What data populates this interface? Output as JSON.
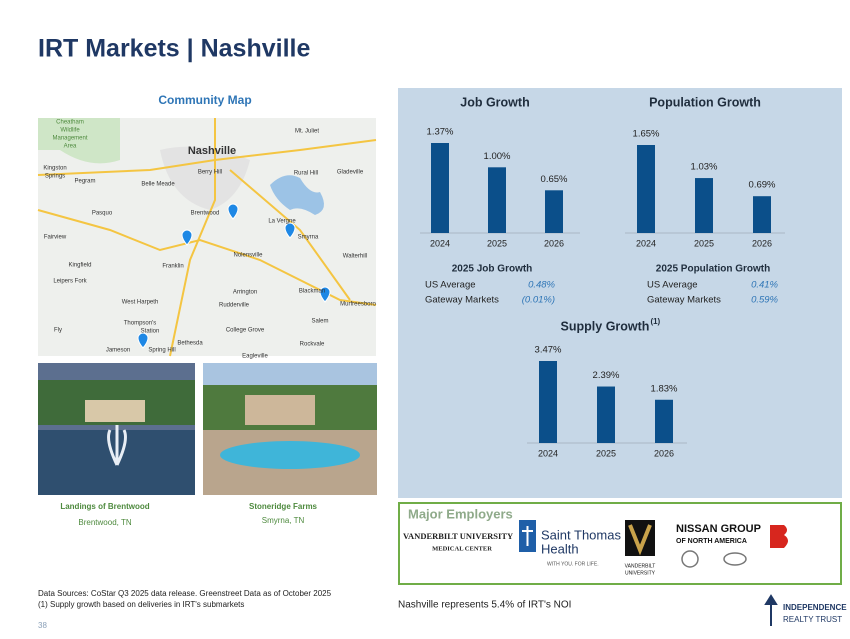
{
  "header": {
    "title": "IRT Markets | Nashville"
  },
  "map": {
    "title": "Community Map",
    "labels": [
      "Cheatham",
      "Wildlife",
      "Management",
      "Area",
      "Nashville",
      "Mt. Juliet",
      "Rural Hill",
      "Gladeville",
      "Kingston",
      "Springs",
      "Pegram",
      "Belle Meade",
      "Berry Hill",
      "Pasquo",
      "Brentwood",
      "La Vergne",
      "Smyrna",
      "Fairview",
      "Kingfield",
      "Franklin",
      "Nolensville",
      "Walterhill",
      "Leipers Fork",
      "Arrington",
      "Blackman",
      "Murfreesboro",
      "West Harpeth",
      "Rudderville",
      "Salem",
      "Thompson's",
      "Station",
      "College Grove",
      "Fly",
      "Bethesda",
      "Rockvale",
      "Jameson",
      "Spring Hill",
      "Eagleville"
    ]
  },
  "properties": [
    {
      "name": "Landings of Brentwood",
      "location": "Brentwood, TN"
    },
    {
      "name": "Stoneridge Farms",
      "location": "Smyrna, TN"
    }
  ],
  "chart_data": [
    {
      "type": "bar",
      "title": "Job Growth",
      "categories": [
        "2024",
        "2025",
        "2026"
      ],
      "values": [
        1.37,
        1.0,
        0.65
      ],
      "value_labels": [
        "1.37%",
        "1.00%",
        "0.65%"
      ],
      "color": "#0b4f8a"
    },
    {
      "type": "bar",
      "title": "Population Growth",
      "categories": [
        "2024",
        "2025",
        "2026"
      ],
      "values": [
        1.65,
        1.03,
        0.69
      ],
      "value_labels": [
        "1.65%",
        "1.03%",
        "0.69%"
      ],
      "color": "#0b4f8a"
    },
    {
      "type": "bar",
      "title": "Supply Growth",
      "title_superscript": "(1)",
      "categories": [
        "2024",
        "2025",
        "2026"
      ],
      "values": [
        3.47,
        2.39,
        1.83
      ],
      "value_labels": [
        "3.47%",
        "2.39%",
        "1.83%"
      ],
      "color": "#0b4f8a"
    }
  ],
  "stats": [
    {
      "title": "2025 Job Growth",
      "rows": [
        [
          "US Average",
          "0.48%"
        ],
        [
          "Gateway Markets",
          "(0.01%)"
        ]
      ]
    },
    {
      "title": "2025 Population Growth",
      "rows": [
        [
          "US Average",
          "0.41%"
        ],
        [
          "Gateway Markets",
          "0.59%"
        ]
      ]
    }
  ],
  "employers": {
    "title": "Major Employers",
    "logos": [
      "VANDERBILT UNIVERSITY",
      "MEDICAL CENTER",
      "Saint Thomas",
      "Health",
      "WITH YOU. FOR LIFE.",
      "VANDERBILT",
      "UNIVERSITY",
      "NISSAN GROUP",
      "OF NORTH AMERICA"
    ]
  },
  "footer": {
    "sources": "Data Sources: CoStar Q3 2025 data release. Greenstreet Data as of October 2025",
    "note": "(1)  Supply growth based on deliveries in IRT's submarkets",
    "noi": "Nashville represents 5.4% of IRT's NOI",
    "page": "38",
    "logo": [
      "INDEPENDENCE",
      "REALTY TRUST"
    ]
  }
}
